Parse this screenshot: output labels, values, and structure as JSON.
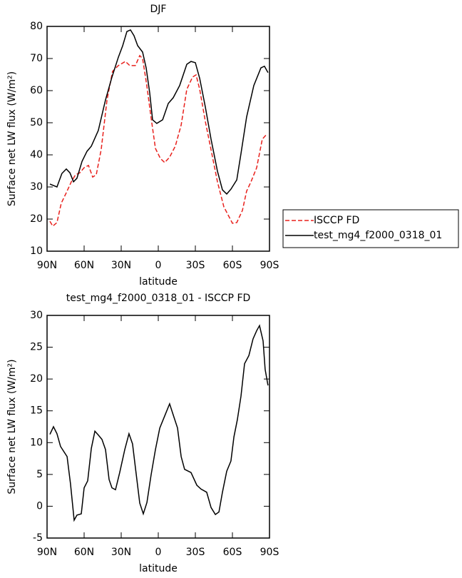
{
  "chart_data": [
    {
      "type": "line",
      "title": "DJF",
      "xlabel": "latitude",
      "ylabel": "Surface net LW flux (W/m²)",
      "xlim": [
        90,
        -90
      ],
      "xticks": [
        {
          "value": 90,
          "label": "90N"
        },
        {
          "value": 60,
          "label": "60N"
        },
        {
          "value": 30,
          "label": "30N"
        },
        0,
        {
          "value": -30,
          "label": "30S"
        },
        {
          "value": -60,
          "label": "60S"
        },
        {
          "value": -90,
          "label": "90S"
        }
      ],
      "ylim": [
        10,
        80
      ],
      "yticks": [
        10,
        20,
        30,
        40,
        50,
        60,
        70,
        80
      ],
      "legend": "right",
      "series": [
        {
          "name": "ISCCP FD",
          "color": "#e8201c",
          "linestyle": "dashed",
          "x": [
            87.7,
            85.4,
            82,
            78.5,
            74.4,
            70.4,
            67,
            63.5,
            60,
            56.5,
            53.1,
            50.2,
            46.2,
            41.5,
            37,
            32.3,
            26.6,
            23.1,
            18.5,
            15,
            12.7,
            9.3,
            5.8,
            2.3,
            -1.7,
            -5.2,
            -9.2,
            -13.8,
            -18.5,
            -23.1,
            -27.7,
            -30.6,
            -33.5,
            -38.1,
            -42.7,
            -47.9,
            -53.1,
            -57.7,
            -60,
            -63.5,
            -68.1,
            -71.5,
            -75,
            -79.6,
            -84.2,
            -87.7
          ],
          "values": [
            19.3,
            17.8,
            18.9,
            24.9,
            28.2,
            31.6,
            33.8,
            34.4,
            36,
            36.7,
            33.1,
            33.8,
            41.6,
            57.1,
            66,
            67.8,
            69.1,
            67.8,
            67.8,
            70.9,
            70,
            61.6,
            51.6,
            42,
            38.9,
            37.6,
            39.3,
            42.7,
            49.3,
            60.4,
            64.2,
            64.9,
            60.4,
            50.4,
            41.6,
            31.6,
            23.8,
            20.4,
            18.7,
            18.9,
            22.7,
            28.7,
            31.6,
            36,
            44.9,
            46.4
          ]
        },
        {
          "name": "test_mg4_f2000_0318_01",
          "color": "#000000",
          "linestyle": "solid",
          "x": [
            87.7,
            82,
            78,
            74.4,
            71.5,
            68.6,
            65.8,
            61.7,
            57.7,
            54.2,
            48.5,
            42.7,
            37.5,
            32.3,
            28.8,
            25.4,
            22.5,
            19.6,
            16.7,
            12.7,
            9.8,
            6.9,
            4.6,
            1.2,
            -3.5,
            -8.1,
            -12.1,
            -17.3,
            -23.1,
            -26.5,
            -30,
            -33.5,
            -38.1,
            -42.7,
            -47.9,
            -51.9,
            -55.4,
            -58.8,
            -63.5,
            -66.9,
            -71.5,
            -77.3,
            -83.1,
            -85.9,
            -88.8
          ],
          "values": [
            30.9,
            30,
            34.2,
            35.6,
            34.4,
            31.6,
            32.7,
            38,
            41.1,
            42.7,
            47.6,
            57.1,
            64.2,
            70.4,
            74,
            78.4,
            78.9,
            77.1,
            74,
            72,
            67.1,
            59.3,
            50.9,
            49.8,
            50.9,
            56,
            57.8,
            61.6,
            68.2,
            69.1,
            68.7,
            63.8,
            54.9,
            44.9,
            34.9,
            29.1,
            27.8,
            29.3,
            32.2,
            40.4,
            51.8,
            61.6,
            67.1,
            67.6,
            65.6
          ]
        }
      ]
    },
    {
      "type": "line",
      "title": "test_mg4_f2000_0318_01 - ISCCP FD",
      "xlabel": "latitude",
      "ylabel": "Surface net LW flux (W/m²)",
      "xlim": [
        90,
        -90
      ],
      "xticks": [
        {
          "value": 90,
          "label": "90N"
        },
        {
          "value": 60,
          "label": "60N"
        },
        {
          "value": 30,
          "label": "30N"
        },
        0,
        {
          "value": -30,
          "label": "30S"
        },
        {
          "value": -60,
          "label": "60S"
        },
        {
          "value": -90,
          "label": "90S"
        }
      ],
      "ylim": [
        -5,
        30
      ],
      "yticks": [
        -5,
        0,
        5,
        10,
        15,
        20,
        25,
        30
      ],
      "color": "#000000",
      "x": [
        87.7,
        84.8,
        82,
        79.1,
        73.8,
        71,
        68.1,
        65.8,
        62.3,
        60,
        57.1,
        54.2,
        51.3,
        48.5,
        45.6,
        42.7,
        39.8,
        37.5,
        34.6,
        31.2,
        27.1,
        23.7,
        20.8,
        18.5,
        15,
        12.1,
        9.2,
        5.8,
        2.3,
        -1.2,
        -5.8,
        -9.2,
        -12.7,
        -15.6,
        -18.5,
        -21.3,
        -26.5,
        -31.2,
        -34.6,
        -39.2,
        -42.7,
        -46.2,
        -49.1,
        -51.9,
        -55.4,
        -58.8,
        -61.2,
        -64,
        -66.9,
        -69.8,
        -73.3,
        -76.7,
        -79.6,
        -81.9,
        -84.8,
        -86.5,
        -88.8
      ],
      "values": [
        11.3,
        12.5,
        11.4,
        9.4,
        7.8,
        3.5,
        -2.2,
        -1.4,
        -1.2,
        2.9,
        4,
        9.1,
        11.8,
        11.2,
        10.5,
        8.9,
        4.2,
        2.9,
        2.6,
        5.3,
        8.9,
        11.4,
        9.8,
        6.1,
        0.5,
        -1.2,
        0.6,
        4.9,
        8.9,
        12.3,
        14.5,
        16.1,
        14,
        12.3,
        7.8,
        5.8,
        5.3,
        3.3,
        2.7,
        2.2,
        -0.2,
        -1.3,
        -0.9,
        2.2,
        5.5,
        7.1,
        10.9,
        13.6,
        17.3,
        22.4,
        23.7,
        26.3,
        27.6,
        28.4,
        26,
        21.5,
        19
      ]
    }
  ]
}
